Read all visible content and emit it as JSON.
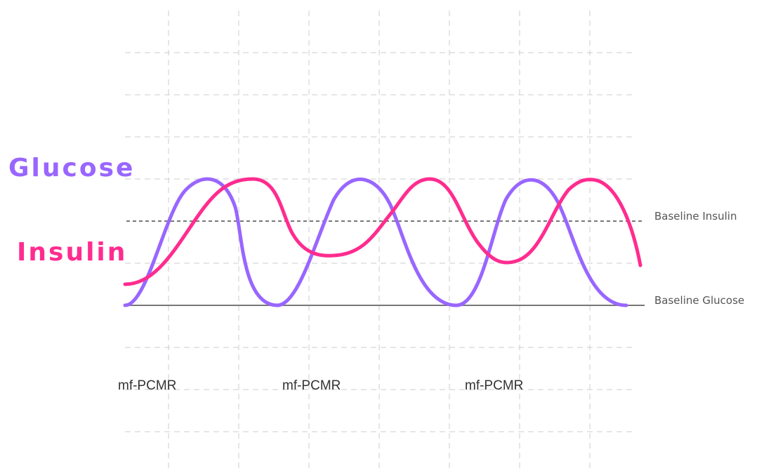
{
  "legend": {
    "glucose": {
      "label": "Glucose",
      "color": "#9966ff"
    },
    "insulin": {
      "label": "Insulin",
      "color": "#ff2c8f"
    }
  },
  "baselines": {
    "insulin": {
      "label": "Baseline Insulin",
      "style": "dashed",
      "color": "#777777"
    },
    "glucose": {
      "label": "Baseline Glucose",
      "style": "solid",
      "color": "#777777"
    }
  },
  "intervals": [
    {
      "label": "mf-PCMR"
    },
    {
      "label": "mf-PCMR"
    },
    {
      "label": "mf-PCMR"
    }
  ],
  "grid": {
    "visible": true,
    "style": "dashed",
    "color": "#cccccc"
  }
}
